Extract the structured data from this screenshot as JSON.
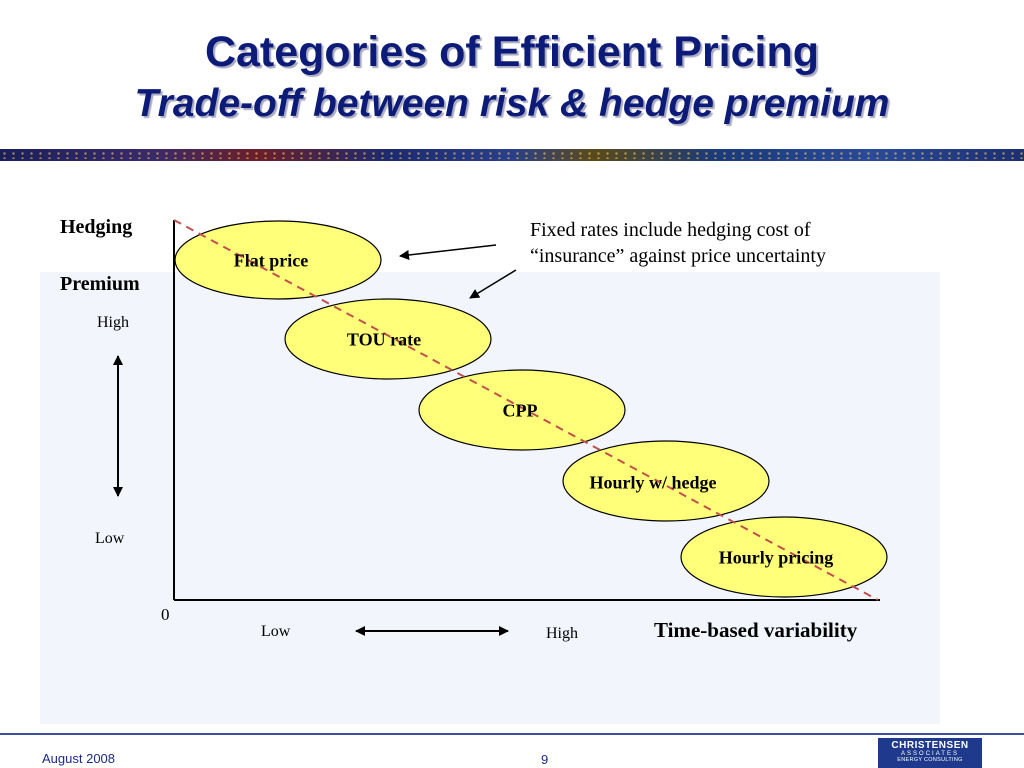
{
  "slide": {
    "title": "Categories of Efficient Pricing",
    "subtitle": "Trade-off between risk & hedge premium"
  },
  "diagram": {
    "y_axis_label_line1": "Hedging",
    "y_axis_label_line2": "Premium",
    "y_high": "High",
    "y_low": "Low",
    "origin": "0",
    "x_low": "Low",
    "x_high": "High",
    "x_axis_title": "Time-based variability",
    "note_line1": "Fixed rates include hedging cost of",
    "note_line2": "“insurance” against price uncertainty",
    "categories": [
      "Flat price",
      "TOU rate",
      "CPP",
      "Hourly w/ hedge",
      "Hourly pricing"
    ],
    "colors": {
      "oval_fill": "#ffff7a",
      "trend_line": "#c0504d",
      "title": "#0c1a78"
    }
  },
  "footer": {
    "date": "August  2008",
    "page": "9",
    "logo_line1": "CHRISTENSEN",
    "logo_line2": "ASSOCIATES",
    "logo_line3": "ENERGY CONSULTING"
  }
}
